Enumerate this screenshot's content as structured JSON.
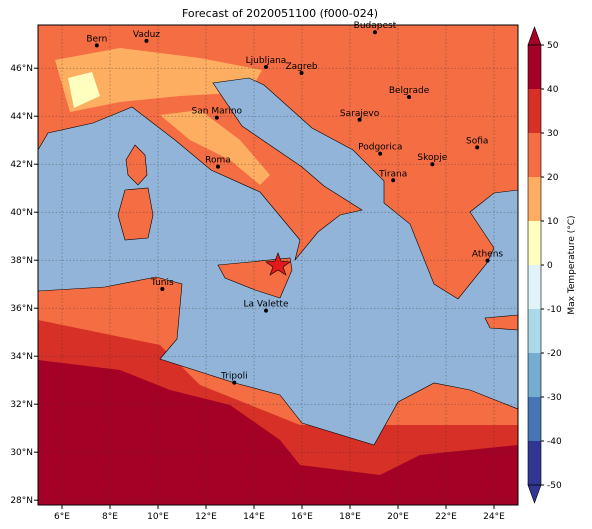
{
  "title": "Forecast of 2020051100 (f000-024)",
  "map": {
    "lon_range": [
      5,
      25
    ],
    "lat_range": [
      27.8,
      47.8
    ],
    "lon_ticks": [
      {
        "value": 6,
        "label": "6°E"
      },
      {
        "value": 8,
        "label": "8°E"
      },
      {
        "value": 10,
        "label": "10°E"
      },
      {
        "value": 12,
        "label": "12°E"
      },
      {
        "value": 14,
        "label": "14°E"
      },
      {
        "value": 16,
        "label": "16°E"
      },
      {
        "value": 18,
        "label": "18°E"
      },
      {
        "value": 20,
        "label": "20°E"
      },
      {
        "value": 22,
        "label": "22°E"
      },
      {
        "value": 24,
        "label": "24°E"
      }
    ],
    "lat_ticks": [
      {
        "value": 28,
        "label": "28°N"
      },
      {
        "value": 30,
        "label": "30°N"
      },
      {
        "value": 32,
        "label": "32°N"
      },
      {
        "value": 34,
        "label": "34°N"
      },
      {
        "value": 36,
        "label": "36°N"
      },
      {
        "value": 38,
        "label": "38°N"
      },
      {
        "value": 40,
        "label": "40°N"
      },
      {
        "value": 42,
        "label": "42°N"
      },
      {
        "value": 44,
        "label": "44°N"
      },
      {
        "value": 46,
        "label": "46°N"
      }
    ],
    "cities": [
      {
        "name": "Bern",
        "lon": 7.45,
        "lat": 46.95
      },
      {
        "name": "Vaduz",
        "lon": 9.52,
        "lat": 47.14
      },
      {
        "name": "Budapest",
        "lon": 19.04,
        "lat": 47.5
      },
      {
        "name": "Ljubljana",
        "lon": 14.5,
        "lat": 46.05
      },
      {
        "name": "Zagreb",
        "lon": 15.98,
        "lat": 45.8
      },
      {
        "name": "Belgrade",
        "lon": 20.46,
        "lat": 44.8
      },
      {
        "name": "San Marino",
        "lon": 12.45,
        "lat": 43.94
      },
      {
        "name": "Sarajevo",
        "lon": 18.4,
        "lat": 43.85
      },
      {
        "name": "Sofia",
        "lon": 23.3,
        "lat": 42.7
      },
      {
        "name": "Podgorica",
        "lon": 19.26,
        "lat": 42.44
      },
      {
        "name": "Skopje",
        "lon": 21.43,
        "lat": 42.0
      },
      {
        "name": "Roma",
        "lon": 12.5,
        "lat": 41.9
      },
      {
        "name": "Tirana",
        "lon": 19.8,
        "lat": 41.33
      },
      {
        "name": "Athens",
        "lon": 23.73,
        "lat": 37.98
      },
      {
        "name": "Tunis",
        "lon": 10.18,
        "lat": 36.8
      },
      {
        "name": "La Valette",
        "lon": 14.5,
        "lat": 35.9
      },
      {
        "name": "Tripoli",
        "lon": 13.18,
        "lat": 32.9
      }
    ]
  },
  "colorbar": {
    "label": "Max Temperature (°C)",
    "ticks": [
      -50,
      -40,
      -30,
      -20,
      -10,
      0,
      10,
      20,
      30,
      40,
      50
    ],
    "colors": [
      "#313695",
      "#4575b4",
      "#74add1",
      "#abd9e9",
      "#e0f3f8",
      "#ffffbf",
      "#fdae61",
      "#f46d43",
      "#d73027",
      "#a50026"
    ]
  }
}
